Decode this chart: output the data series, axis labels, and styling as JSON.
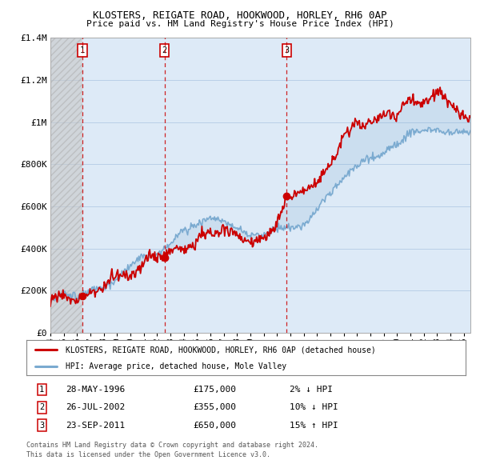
{
  "title": "KLOSTERS, REIGATE ROAD, HOOKWOOD, HORLEY, RH6 0AP",
  "subtitle": "Price paid vs. HM Land Registry's House Price Index (HPI)",
  "legend_label_red": "KLOSTERS, REIGATE ROAD, HOOKWOOD, HORLEY, RH6 0AP (detached house)",
  "legend_label_blue": "HPI: Average price, detached house, Mole Valley",
  "transactions": [
    {
      "num": 1,
      "date": "28-MAY-1996",
      "price": 175000,
      "hpi_diff": "2% ↓ HPI",
      "year": 1996.4
    },
    {
      "num": 2,
      "date": "26-JUL-2002",
      "price": 355000,
      "hpi_diff": "10% ↓ HPI",
      "year": 2002.55
    },
    {
      "num": 3,
      "date": "23-SEP-2011",
      "price": 650000,
      "hpi_diff": "15% ↑ HPI",
      "year": 2011.72
    }
  ],
  "footer_line1": "Contains HM Land Registry data © Crown copyright and database right 2024.",
  "footer_line2": "This data is licensed under the Open Government Licence v3.0.",
  "ylim": [
    0,
    1400000
  ],
  "yticks": [
    0,
    200000,
    400000,
    600000,
    800000,
    1000000,
    1200000,
    1400000
  ],
  "ytick_labels": [
    "£0",
    "£200K",
    "£400K",
    "£600K",
    "£800K",
    "£1M",
    "£1.2M",
    "£1.4M"
  ],
  "xmin": 1994,
  "xmax": 2025.5,
  "red_color": "#cc0000",
  "blue_color": "#7aaad0",
  "grid_color": "#b8cfe8",
  "bg_color": "#ddeaf7",
  "hatch_color": "#c8c8c8"
}
